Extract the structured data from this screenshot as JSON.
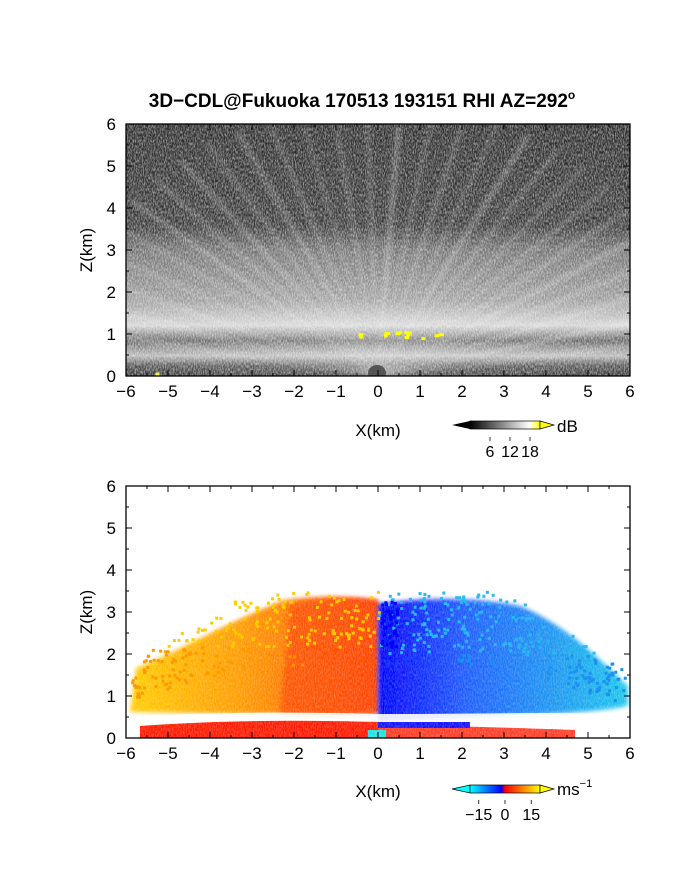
{
  "title": "3D−CDL@Fukuoka 170513 193151 RHI AZ=292",
  "title_degree": "o",
  "chart_data": [
    {
      "type": "heatmap",
      "name": "reflectivity-panel",
      "xlabel": "X(km)",
      "ylabel": "Z(km)",
      "xlim": [
        -6,
        6
      ],
      "ylim": [
        0,
        6
      ],
      "xticks": [
        "−6",
        "−5",
        "−4",
        "−3",
        "−2",
        "−1",
        "0",
        "1",
        "2",
        "3",
        "4",
        "5",
        "6"
      ],
      "yticks": [
        "0",
        "1",
        "2",
        "3",
        "4",
        "5",
        "6"
      ],
      "colorbar": {
        "unit": "dB",
        "ticks": [
          "6",
          "12",
          "18"
        ],
        "range": [
          0,
          21
        ],
        "colors": [
          "#000000",
          "#ffffff",
          "#ffff00"
        ]
      },
      "features": {
        "bright_layer_top_km": 3.0,
        "yellow_spot_height_km": 1.0,
        "yellow_spot_x_range_km": [
          -0.5,
          1.8
        ]
      }
    },
    {
      "type": "heatmap",
      "name": "doppler-velocity-panel",
      "xlabel": "X(km)",
      "ylabel": "Z(km)",
      "xlim": [
        -6,
        6
      ],
      "ylim": [
        0,
        6
      ],
      "xticks": [
        "−6",
        "−5",
        "−4",
        "−3",
        "−2",
        "−1",
        "0",
        "1",
        "2",
        "3",
        "4",
        "5",
        "6"
      ],
      "yticks": [
        "0",
        "1",
        "2",
        "3",
        "4",
        "5",
        "6"
      ],
      "colorbar": {
        "unit": "ms",
        "unit_exponent": "−1",
        "ticks": [
          "−15",
          "0",
          "15"
        ],
        "range": [
          -20,
          20
        ],
        "colors": [
          "#00ffff",
          "#0000ff",
          "#ff0000",
          "#ff8000",
          "#ffff00"
        ]
      },
      "features": {
        "echo_top_km": 3.3,
        "negative_side": "x<0 red/orange/yellow",
        "positive_side": "x>0 blue/cyan"
      }
    }
  ]
}
